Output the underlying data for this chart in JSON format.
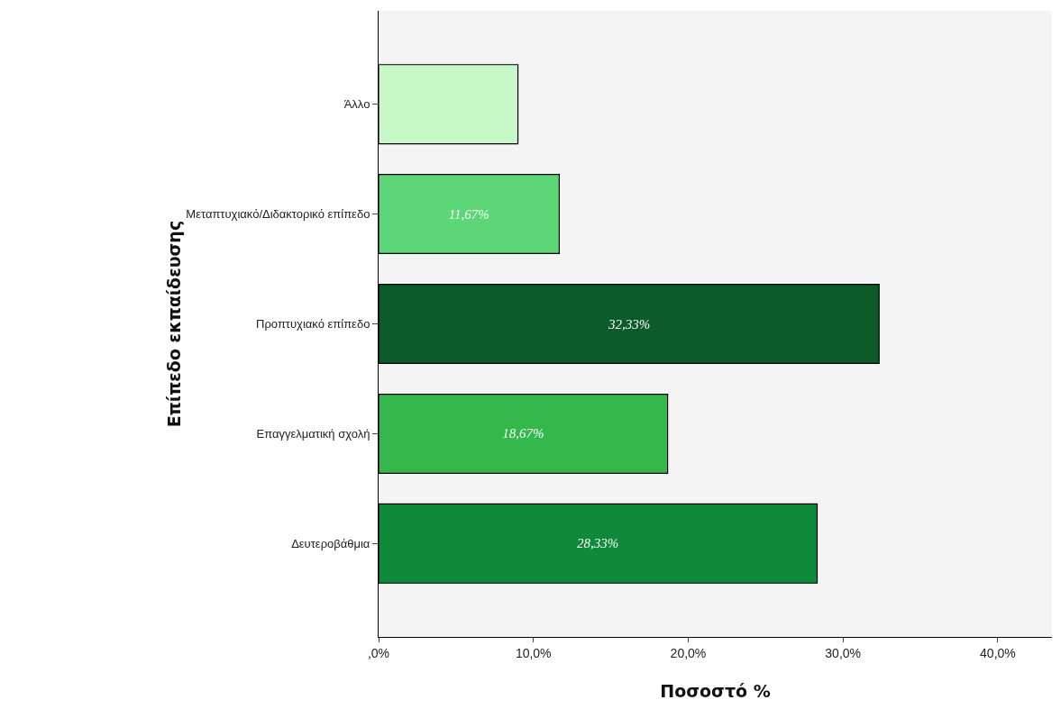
{
  "chart_data": {
    "type": "bar",
    "orientation": "horizontal",
    "xlabel": "Ποσοστό %",
    "ylabel": "Επίπεδο εκπαίδευσης",
    "categories": [
      "Άλλο",
      "Μεταπτυχιακό/Διδακτορικό επίπεδο",
      "Προπτυχιακό επίπεδο",
      "Επαγγελματική σχολή",
      "Δευτεροβάθμια"
    ],
    "values": [
      9.0,
      11.67,
      32.33,
      18.67,
      28.33
    ],
    "colors": [
      "#c8f8c8",
      "#5cd676",
      "#0d5a2a",
      "#34b84c",
      "#0e8a3a"
    ],
    "value_labels": [
      null,
      "11,67%",
      "32,33%",
      "18,67%",
      "28,33%"
    ],
    "xlim": [
      0,
      43.5
    ],
    "xticks": [
      {
        "value": 0,
        "label": ",0%"
      },
      {
        "value": 10,
        "label": "10,0%"
      },
      {
        "value": 20,
        "label": "20,0%"
      },
      {
        "value": 30,
        "label": "30,0%"
      },
      {
        "value": 40,
        "label": "40,0%"
      }
    ],
    "grid": false
  }
}
